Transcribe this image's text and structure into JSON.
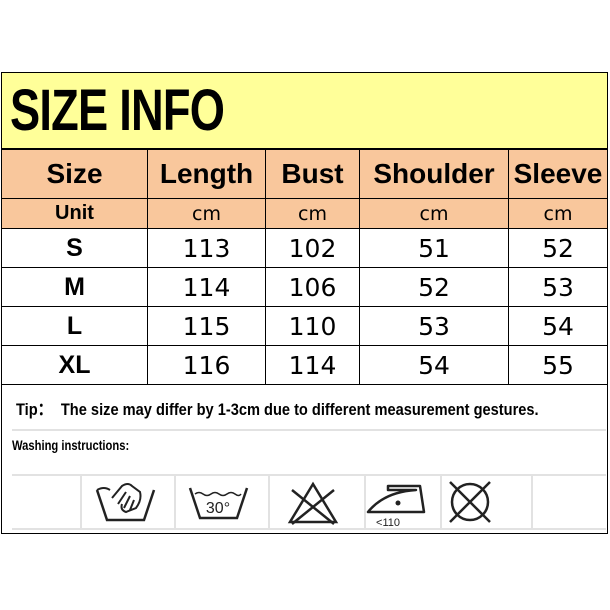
{
  "title": "SIZE INFO",
  "columns": [
    "Size",
    "Length",
    "Bust",
    "Shoulder",
    "Sleeve"
  ],
  "unit_row": [
    "Unit",
    "cm",
    "cm",
    "cm",
    "cm"
  ],
  "rows": [
    [
      "S",
      "113",
      "102",
      "51",
      "52"
    ],
    [
      "M",
      "114",
      "106",
      "52",
      "53"
    ],
    [
      "L",
      "115",
      "110",
      "53",
      "54"
    ],
    [
      "XL",
      "116",
      "114",
      "54",
      "55"
    ]
  ],
  "tip": {
    "label": "Tip：",
    "text": "The size may differ by 1-3cm due to different measurement gestures."
  },
  "washing": {
    "label": "Washing instructions:",
    "icons": [
      {
        "name": "hand-wash-icon"
      },
      {
        "name": "wash-30-icon",
        "text": "30°"
      },
      {
        "name": "do-not-bleach-icon"
      },
      {
        "name": "iron-low-icon",
        "text": "<110"
      },
      {
        "name": "do-not-tumble-dry-icon"
      }
    ]
  },
  "colors": {
    "title_bg": "#ffff99",
    "header_bg": "#f9c79c"
  }
}
